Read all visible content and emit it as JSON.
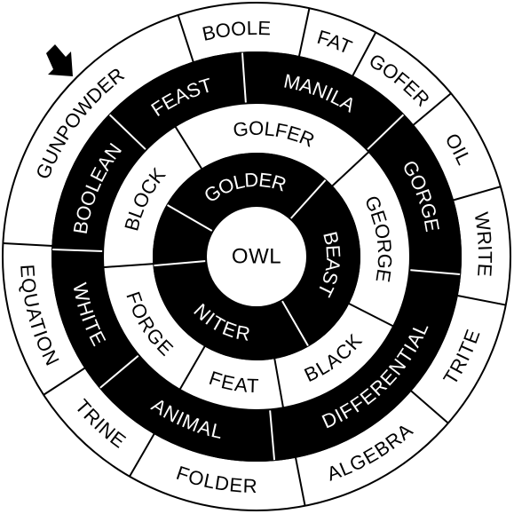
{
  "puzzle": {
    "center": "OWL",
    "rings": [
      {
        "name": "outer",
        "fill": "#ffffff",
        "text_color": "#000000",
        "words": [
          "BOOLE",
          "FAT",
          "GOFER",
          "OIL",
          "WRITE",
          "TRITE",
          "ALGEBRA",
          "FOLDER",
          "TRINE",
          "EQUATION",
          "GUNPOWDER"
        ]
      },
      {
        "name": "third",
        "fill": "#000000",
        "text_color": "#ffffff",
        "words": [
          "FEAST",
          "MANILA",
          "GORGE",
          "DIFFERENTIAL",
          "ANIMAL",
          "WHITE",
          "BOOLEAN"
        ]
      },
      {
        "name": "second",
        "fill": "#ffffff",
        "text_color": "#000000",
        "words": [
          "GOLFER",
          "GEORGE",
          "BLACK",
          "FEAT",
          "FORGE",
          "BLOCK"
        ]
      },
      {
        "name": "inner",
        "fill": "#000000",
        "text_color": "#ffffff",
        "words": [
          "GOLDER",
          "BEAST",
          "NITER"
        ]
      }
    ],
    "start_marker": "arrow-icon"
  }
}
